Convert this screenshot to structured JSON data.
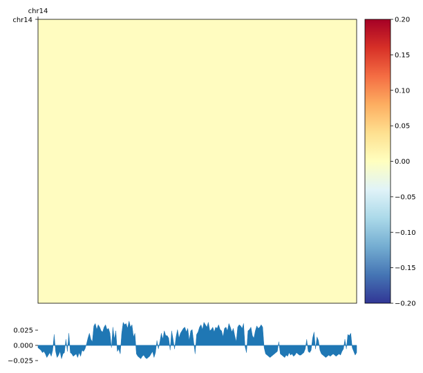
{
  "chart_data": [
    {
      "type": "heatmap",
      "chrom_label_top": "chr14",
      "chrom_label_left": "chr14",
      "fill_color": "#fffcc0",
      "colorbar": {
        "cmap": "RdYlBu_r",
        "vmin": -0.2,
        "vmax": 0.2,
        "ticks": [
          "0.20",
          "0.15",
          "0.10",
          "0.05",
          "0.00",
          "−0.05",
          "−0.10",
          "−0.15",
          "−0.20"
        ],
        "tick_values": [
          0.2,
          0.15,
          0.1,
          0.05,
          0.0,
          -0.05,
          -0.1,
          -0.15,
          -0.2
        ],
        "stops": [
          "#a50026",
          "#d73027",
          "#f46d43",
          "#fdae61",
          "#fee090",
          "#ffffbf",
          "#e0f3f8",
          "#abd9e9",
          "#74add1",
          "#4575b4",
          "#313695"
        ]
      }
    },
    {
      "type": "area",
      "series": [
        {
          "color": "#1f77b4",
          "values": [
            -0.004,
            -0.006,
            -0.008,
            -0.012,
            -0.01,
            -0.014,
            -0.02,
            -0.016,
            -0.012,
            -0.018,
            -0.008,
            0.018,
            -0.01,
            -0.02,
            -0.016,
            -0.01,
            -0.022,
            -0.014,
            -0.012,
            0.01,
            -0.01,
            0.02,
            -0.012,
            -0.014,
            -0.018,
            -0.016,
            -0.014,
            -0.02,
            -0.012,
            -0.018,
            -0.008,
            -0.01,
            -0.006,
            0.002,
            0.012,
            0.02,
            0.01,
            0.006,
            0.032,
            0.036,
            0.026,
            0.034,
            0.03,
            0.024,
            0.022,
            0.03,
            0.034,
            0.026,
            0.028,
            0.02,
            -0.004,
            0.03,
            0.01,
            0.024,
            -0.01,
            -0.006,
            -0.014,
            0.02,
            0.038,
            0.034,
            0.036,
            0.028,
            0.04,
            0.03,
            0.034,
            0.014,
            0.02,
            -0.014,
            -0.018,
            -0.02,
            -0.022,
            -0.018,
            -0.016,
            -0.02,
            -0.022,
            -0.02,
            -0.018,
            -0.014,
            -0.01,
            -0.02,
            -0.012,
            0.008,
            -0.006,
            0.006,
            0.02,
            0.01,
            0.024,
            0.016,
            0.016,
            0.012,
            -0.008,
            0.024,
            0.01,
            -0.006,
            0.014,
            0.026,
            0.012,
            0.02,
            0.024,
            0.028,
            0.03,
            0.022,
            0.028,
            0.008,
            0.024,
            0.026,
            0.006,
            -0.014,
            0.018,
            0.022,
            0.03,
            0.034,
            0.026,
            0.038,
            0.034,
            0.03,
            0.038,
            0.024,
            0.026,
            0.03,
            0.022,
            0.03,
            0.028,
            0.034,
            0.026,
            0.024,
            0.014,
            0.028,
            0.03,
            0.024,
            0.036,
            0.03,
            0.022,
            0.028,
            0.016,
            0.006,
            0.03,
            0.034,
            0.032,
            0.028,
            0.036,
            -0.002,
            -0.012,
            0.024,
            0.026,
            0.03,
            0.016,
            0.012,
            0.024,
            0.032,
            0.028,
            0.03,
            0.034,
            0.03,
            -0.004,
            -0.014,
            -0.016,
            -0.018,
            -0.02,
            -0.018,
            -0.016,
            -0.014,
            -0.012,
            -0.01,
            0.006,
            -0.014,
            -0.016,
            -0.018,
            -0.02,
            -0.016,
            -0.018,
            -0.012,
            -0.016,
            -0.014,
            -0.018,
            -0.016,
            -0.012,
            -0.014,
            -0.016,
            -0.016,
            -0.014,
            -0.012,
            -0.006,
            0.01,
            -0.01,
            -0.012,
            -0.008,
            0.012,
            0.022,
            -0.006,
            0.014,
            0.008,
            -0.008,
            -0.014,
            -0.016,
            -0.018,
            -0.02,
            -0.018,
            -0.016,
            -0.018,
            -0.016,
            -0.014,
            -0.016,
            -0.018,
            -0.016,
            -0.014,
            -0.016,
            -0.01,
            -0.006,
            0.01,
            -0.006,
            0.018,
            0.016,
            0.02,
            -0.004,
            -0.01,
            -0.016,
            -0.012
          ]
        }
      ],
      "yticks": [
        "0.025",
        "0.000",
        "−0.025"
      ],
      "ytick_values": [
        0.025,
        0.0,
        -0.025
      ],
      "ylim": [
        -0.03,
        0.042
      ]
    }
  ]
}
